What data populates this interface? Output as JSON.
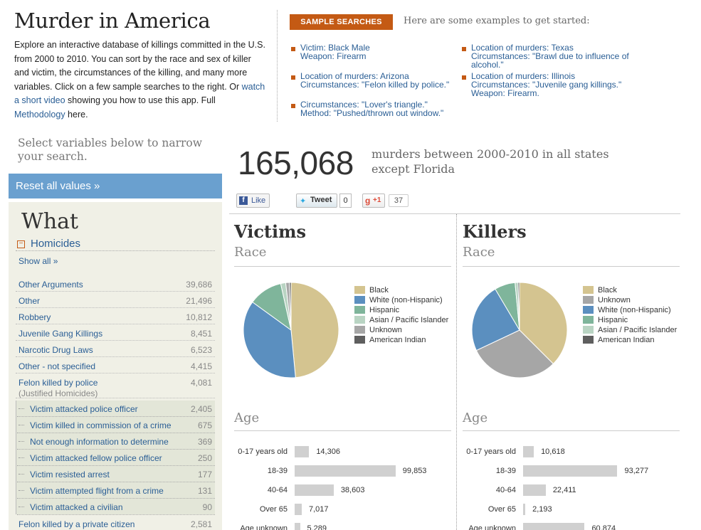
{
  "header": {
    "title": "Murder in America",
    "intro_1": "Explore an interactive database of killings committed in the U.S. from 2000 to 2010. You can sort by the race and sex of killer and victim, the circumstances of the killing, and many more variables. Click on a few sample searches to the right. Or ",
    "intro_link_video": "watch a short video",
    "intro_2": " showing you how to use this app. Full ",
    "intro_link_method": "Methodology",
    "intro_3": " here."
  },
  "samples": {
    "button": "SAMPLE SEARCHES",
    "intro": "Here are some examples to get started:",
    "items": [
      {
        "line1": "Victim: Black Male",
        "line2": "Weapon: Firearm",
        "line3": ""
      },
      {
        "line1": "Location of murders: Arizona",
        "line2": "Circumstances: \"Felon killed by police.\"",
        "line3": ""
      },
      {
        "line1": "Circumstances: \"Lover's triangle.\"",
        "line2": "Method: \"Pushed/thrown out window.\"",
        "line3": ""
      },
      {
        "line1": "Location of murders: Texas",
        "line2": "Circumstances: \"Brawl due to influence of",
        "line3": "alcohol.\""
      },
      {
        "line1": "Location of murders: Illinois",
        "line2": "Circumstances: \"Juvenile gang killings.\"",
        "line3": "Weapon: Firearm."
      }
    ]
  },
  "left": {
    "narrow": "Select variables below to narrow your search.",
    "reset": "Reset all values »",
    "what": "What",
    "homicides": "Homicides",
    "toggle": "−",
    "show_all": "Show all »",
    "categories": [
      {
        "label": "Other Arguments",
        "value": "39,686"
      },
      {
        "label": "Other",
        "value": "21,496"
      },
      {
        "label": "Robbery",
        "value": "10,812"
      },
      {
        "label": "Juvenile Gang Killings",
        "value": "8,451"
      },
      {
        "label": "Narcotic Drug Laws",
        "value": "6,523"
      },
      {
        "label": "Other - not specified",
        "value": "4,415"
      },
      {
        "label": "Felon killed by police",
        "sub": "(Justified Homicides)",
        "value": "4,081"
      }
    ],
    "subcategories": [
      {
        "label": "Victim attacked police officer",
        "value": "2,405"
      },
      {
        "label": "Victim killed in commission of a crime",
        "value": "675"
      },
      {
        "label": "Not enough information to determine",
        "value": "369"
      },
      {
        "label": "Victim attacked fellow police officer",
        "value": "250"
      },
      {
        "label": "Victim resisted arrest",
        "value": "177"
      },
      {
        "label": "Victim attempted flight from a crime",
        "value": "131"
      },
      {
        "label": "Victim attacked a civilian",
        "value": "90"
      }
    ],
    "last_category": {
      "label": "Felon killed by a private citizen",
      "value": "2,581"
    }
  },
  "stats": {
    "total": "165,068",
    "desc": "murders between 2000-2010 in all states except Florida"
  },
  "social": {
    "like": "Like",
    "tweet": "Tweet",
    "tweet_count": "0",
    "plus": "+1",
    "plus_count": "37"
  },
  "victims": {
    "title": "Victims",
    "race_title": "Race",
    "age_title": "Age"
  },
  "killers": {
    "title": "Killers",
    "race_title": "Race",
    "age_title": "Age"
  },
  "colors": {
    "Black": "#d4c490",
    "White (non-Hispanic)": "#5b8fbf",
    "Hispanic": "#7fb59b",
    "Asian / Pacific Islander": "#b9d4c3",
    "Unknown": "#a6a6a6",
    "American Indian": "#5f5f5f"
  },
  "chart_data": [
    {
      "type": "pie",
      "id": "victims-race",
      "legend": [
        "Black",
        "White (non-Hispanic)",
        "Hispanic",
        "Asian / Pacific Islander",
        "Unknown",
        "American Indian"
      ],
      "slices": [
        {
          "label": "Black",
          "value": 48.5
        },
        {
          "label": "White (non-Hispanic)",
          "value": 36.5
        },
        {
          "label": "Hispanic",
          "value": 11.5
        },
        {
          "label": "Asian / Pacific Islander",
          "value": 1.7
        },
        {
          "label": "Unknown",
          "value": 1.2
        },
        {
          "label": "American Indian",
          "value": 0.6
        }
      ]
    },
    {
      "type": "pie",
      "id": "killers-race",
      "legend": [
        "Black",
        "Unknown",
        "White (non-Hispanic)",
        "Hispanic",
        "Asian / Pacific Islander",
        "American Indian"
      ],
      "slices": [
        {
          "label": "Black",
          "value": 37.5
        },
        {
          "label": "Unknown",
          "value": 30.5
        },
        {
          "label": "White (non-Hispanic)",
          "value": 23.5
        },
        {
          "label": "Hispanic",
          "value": 7.0
        },
        {
          "label": "Asian / Pacific Islander",
          "value": 1.0
        },
        {
          "label": "American Indian",
          "value": 0.5
        }
      ]
    },
    {
      "type": "bar",
      "id": "victims-age",
      "categories": [
        "0-17 years old",
        "18-39",
        "40-64",
        "Over 65",
        "Age unknown"
      ],
      "values": [
        14306,
        99853,
        38603,
        7017,
        5289
      ],
      "labels": [
        "14,306",
        "99,853",
        "38,603",
        "7,017",
        "5,289"
      ]
    },
    {
      "type": "bar",
      "id": "killers-age",
      "categories": [
        "0-17 years old",
        "18-39",
        "40-64",
        "Over 65",
        "Age unknown"
      ],
      "values": [
        10618,
        93277,
        22411,
        2193,
        60874
      ],
      "labels": [
        "10,618",
        "93,277",
        "22,411",
        "2,193",
        "60,874"
      ]
    }
  ]
}
